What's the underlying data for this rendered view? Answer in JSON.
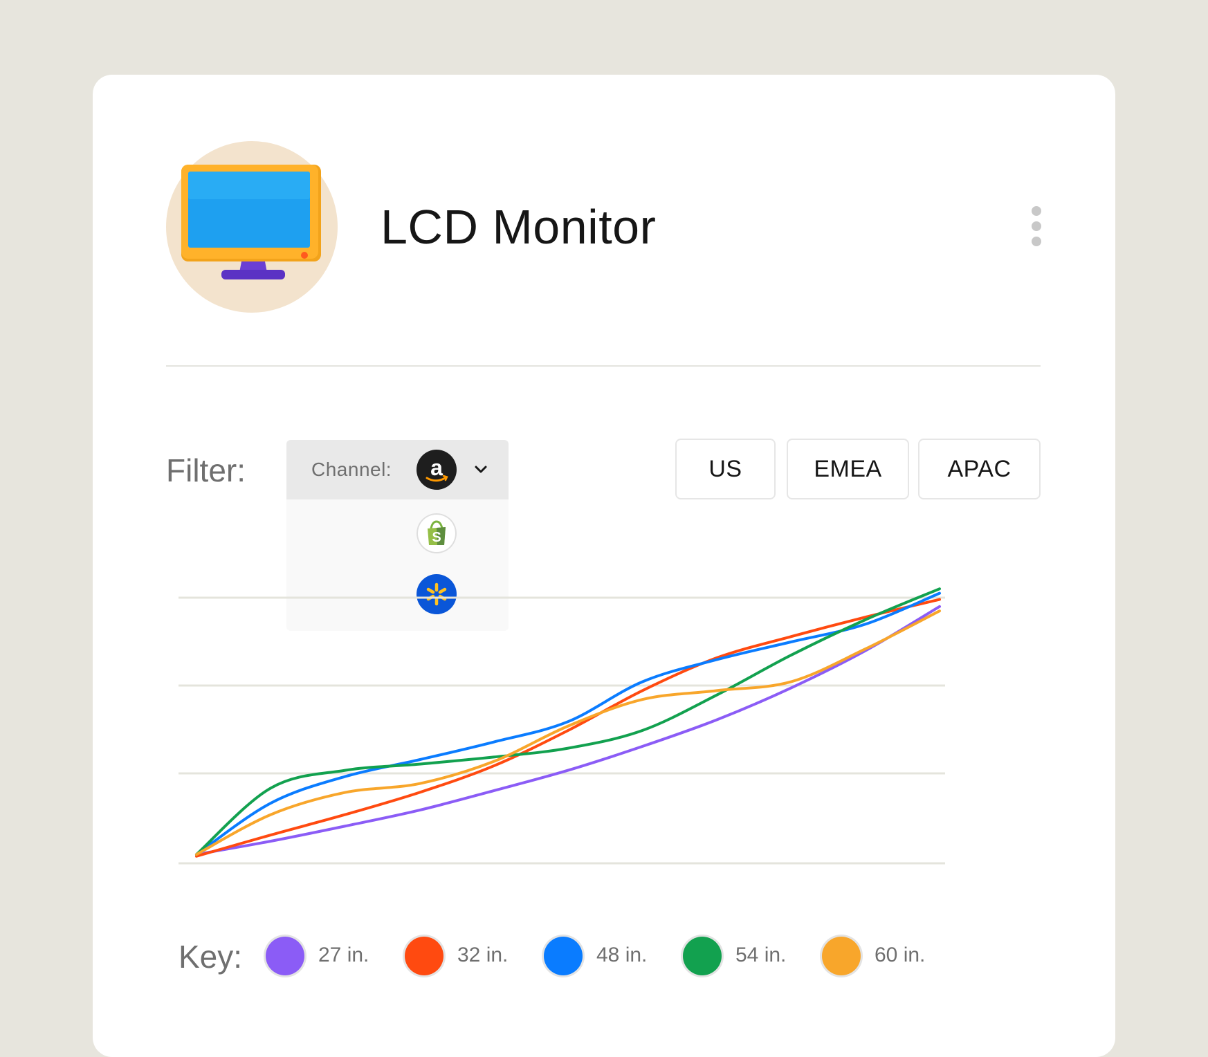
{
  "product": {
    "title": "LCD Monitor",
    "icon": "monitor-icon"
  },
  "filter": {
    "label": "Filter:",
    "channel_label": "Channel:",
    "selected_channel": "amazon",
    "channels": [
      "amazon",
      "shopify",
      "walmart"
    ]
  },
  "regions": [
    "US",
    "EMEA",
    "APAC"
  ],
  "key": {
    "label": "Key:",
    "items": [
      {
        "label": "27 in.",
        "color": "#8b5cf6"
      },
      {
        "label": "32 in.",
        "color": "#ff4a10"
      },
      {
        "label": "48 in.",
        "color": "#0a7cff"
      },
      {
        "label": "54 in.",
        "color": "#12a14f"
      },
      {
        "label": "60 in.",
        "color": "#f8a62b"
      }
    ]
  },
  "chart_data": {
    "type": "line",
    "x": [
      0,
      1,
      2,
      3,
      4,
      5,
      6,
      7,
      8,
      9,
      10
    ],
    "ylim": [
      0,
      3
    ],
    "grid": true,
    "series": [
      {
        "name": "27 in.",
        "color": "#8b5cf6",
        "values": [
          0.1,
          0.25,
          0.42,
          0.6,
          0.82,
          1.05,
          1.32,
          1.62,
          1.98,
          2.4,
          2.9
        ]
      },
      {
        "name": "32 in.",
        "color": "#ff4a10",
        "values": [
          0.08,
          0.32,
          0.55,
          0.8,
          1.1,
          1.5,
          1.95,
          2.32,
          2.56,
          2.78,
          2.98
        ]
      },
      {
        "name": "48 in.",
        "color": "#0a7cff",
        "values": [
          0.1,
          0.68,
          0.98,
          1.17,
          1.37,
          1.6,
          2.05,
          2.3,
          2.5,
          2.7,
          3.05
        ]
      },
      {
        "name": "54 in.",
        "color": "#12a14f",
        "values": [
          0.1,
          0.85,
          1.05,
          1.12,
          1.2,
          1.3,
          1.5,
          1.9,
          2.35,
          2.75,
          3.1
        ]
      },
      {
        "name": "60 in.",
        "color": "#f8a62b",
        "values": [
          0.1,
          0.55,
          0.8,
          0.9,
          1.15,
          1.55,
          1.85,
          1.95,
          2.05,
          2.42,
          2.85
        ]
      }
    ]
  }
}
